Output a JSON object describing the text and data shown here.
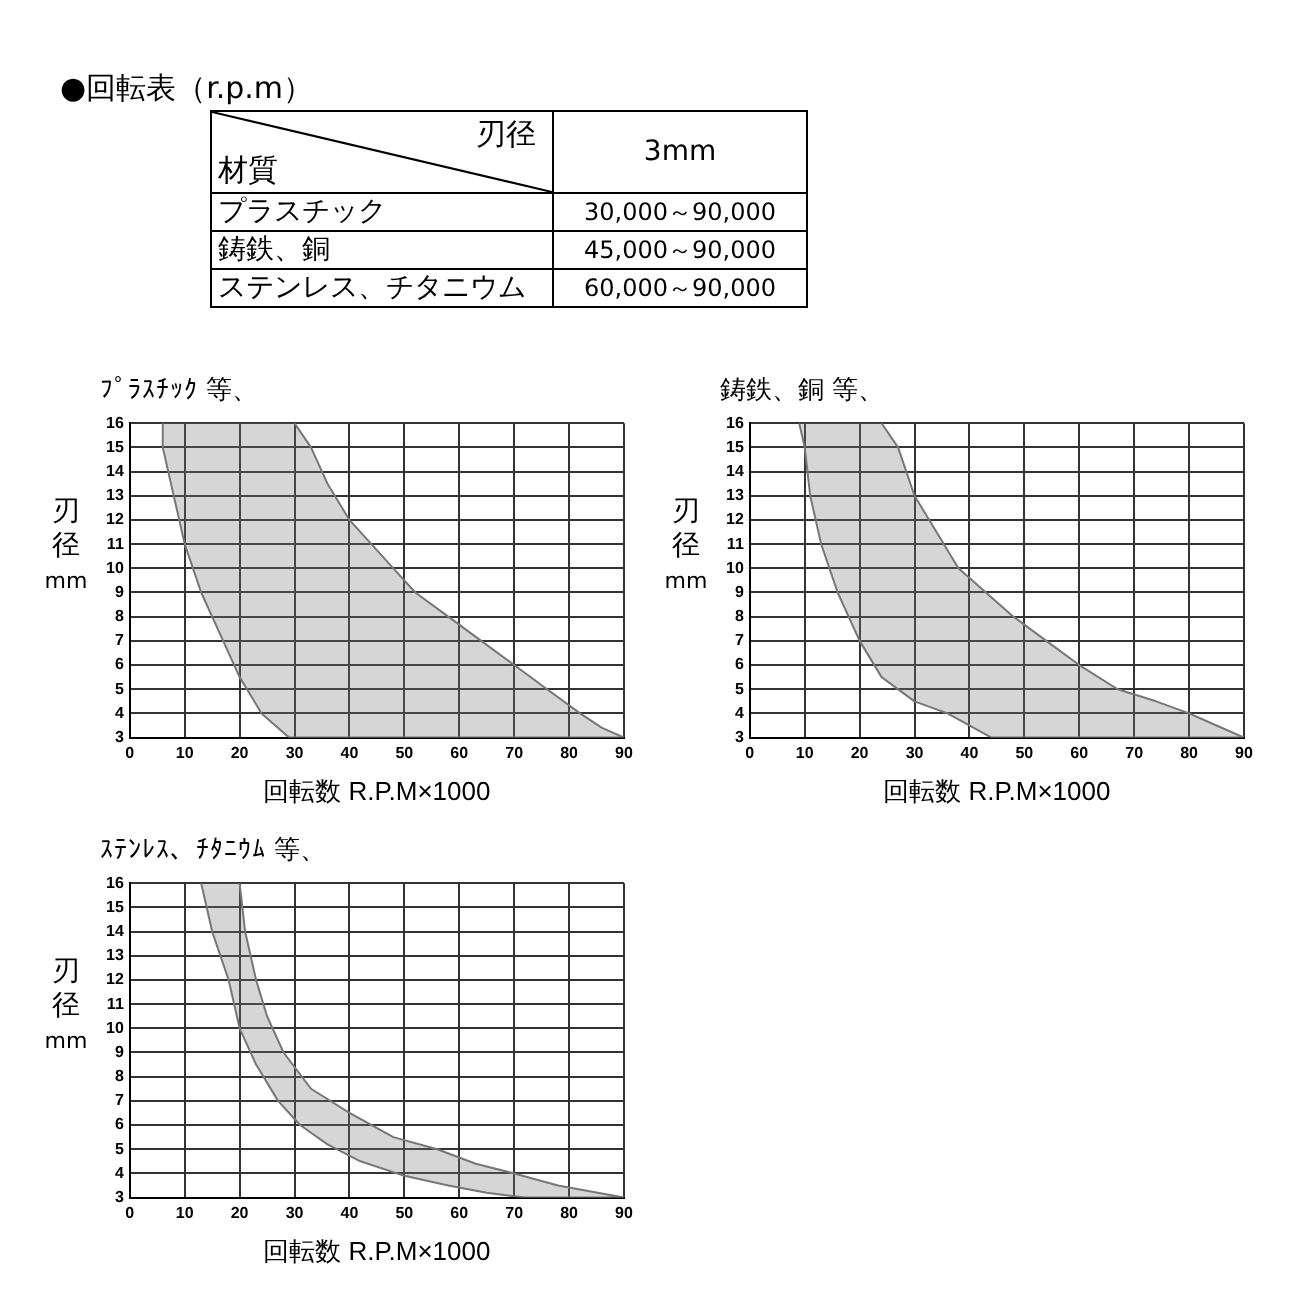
{
  "chart_data": [
    {
      "type": "other",
      "title": "●回転表（r.p.m）",
      "annotations": [
        "刃径",
        "材質",
        "3mm",
        "プラスチック",
        "30,000～90,000",
        "鋳鉄、銅",
        "45,000～90,000",
        "ステンレス、チタニウム",
        "60,000～90,000"
      ]
    },
    {
      "type": "line",
      "title": "ﾌﾟﾗｽﾁｯｸ 等、",
      "xlabel": "回転数 R.P.M×1000",
      "ylabel": "刃径 mm",
      "xlim": [
        0,
        90
      ],
      "xticks": [
        0,
        10,
        20,
        30,
        40,
        50,
        60,
        70,
        80,
        90
      ],
      "ylim": [
        3,
        16
      ],
      "yticks": [
        3,
        4,
        5,
        6,
        7,
        8,
        9,
        10,
        11,
        12,
        13,
        14,
        15,
        16
      ],
      "grid": true,
      "series": [
        {
          "type": "area",
          "color": "#777777",
          "x": [
            6,
            6,
            8,
            10,
            13,
            17,
            20,
            24,
            29,
            90,
            86,
            82,
            76,
            70,
            64,
            58,
            52,
            48,
            44,
            40,
            36,
            33,
            30
          ],
          "values": [
            16,
            15,
            13,
            11,
            9,
            7,
            5.5,
            4,
            3,
            3,
            3.4,
            4,
            5,
            6,
            7,
            8,
            9,
            10,
            11,
            12,
            13.5,
            15,
            16
          ]
        }
      ]
    },
    {
      "type": "line",
      "title": "鋳鉄、銅 等、",
      "xlabel": "回転数 R.P.M×1000",
      "ylabel": "刃径 mm",
      "xlim": [
        0,
        90
      ],
      "xticks": [
        0,
        10,
        20,
        30,
        40,
        50,
        60,
        70,
        80,
        90
      ],
      "ylim": [
        3,
        16
      ],
      "yticks": [
        3,
        4,
        5,
        6,
        7,
        8,
        9,
        10,
        11,
        12,
        13,
        14,
        15,
        16
      ],
      "grid": true,
      "series": [
        {
          "type": "area",
          "color": "#777777",
          "x": [
            9,
            10,
            11,
            13,
            16,
            20,
            24,
            30,
            36,
            44,
            90,
            85,
            80,
            74,
            67,
            60,
            54,
            48,
            43,
            38,
            34,
            30,
            27,
            24
          ],
          "values": [
            16,
            15,
            13,
            11,
            9,
            7,
            5.5,
            4.5,
            4,
            3,
            3,
            3.5,
            4,
            4.5,
            5,
            6,
            7,
            8,
            9,
            10,
            11.5,
            13,
            15,
            16
          ]
        }
      ]
    },
    {
      "type": "line",
      "title": "ｽﾃﾝﾚｽ、ﾁﾀﾆｳﾑ 等、",
      "xlabel": "回転数 R.P.M×1000",
      "ylabel": "刃径 mm",
      "xlim": [
        0,
        90
      ],
      "xticks": [
        0,
        10,
        20,
        30,
        40,
        50,
        60,
        70,
        80,
        90
      ],
      "ylim": [
        3,
        16
      ],
      "yticks": [
        3,
        4,
        5,
        6,
        7,
        8,
        9,
        10,
        11,
        12,
        13,
        14,
        15,
        16
      ],
      "grid": true,
      "series": [
        {
          "type": "area",
          "color": "#777777",
          "x": [
            13,
            15,
            18,
            20,
            23,
            27,
            31,
            36,
            42,
            50,
            58,
            65,
            72,
            90,
            78,
            70,
            63,
            56,
            48,
            40,
            33,
            28,
            25,
            23,
            21,
            20
          ],
          "values": [
            16,
            14,
            12,
            10,
            8.5,
            7,
            6,
            5.2,
            4.5,
            3.9,
            3.5,
            3.2,
            3,
            3,
            3.5,
            4,
            4.4,
            5,
            5.5,
            6.5,
            7.5,
            9,
            10.5,
            12,
            14,
            16
          ]
        }
      ]
    }
  ]
}
